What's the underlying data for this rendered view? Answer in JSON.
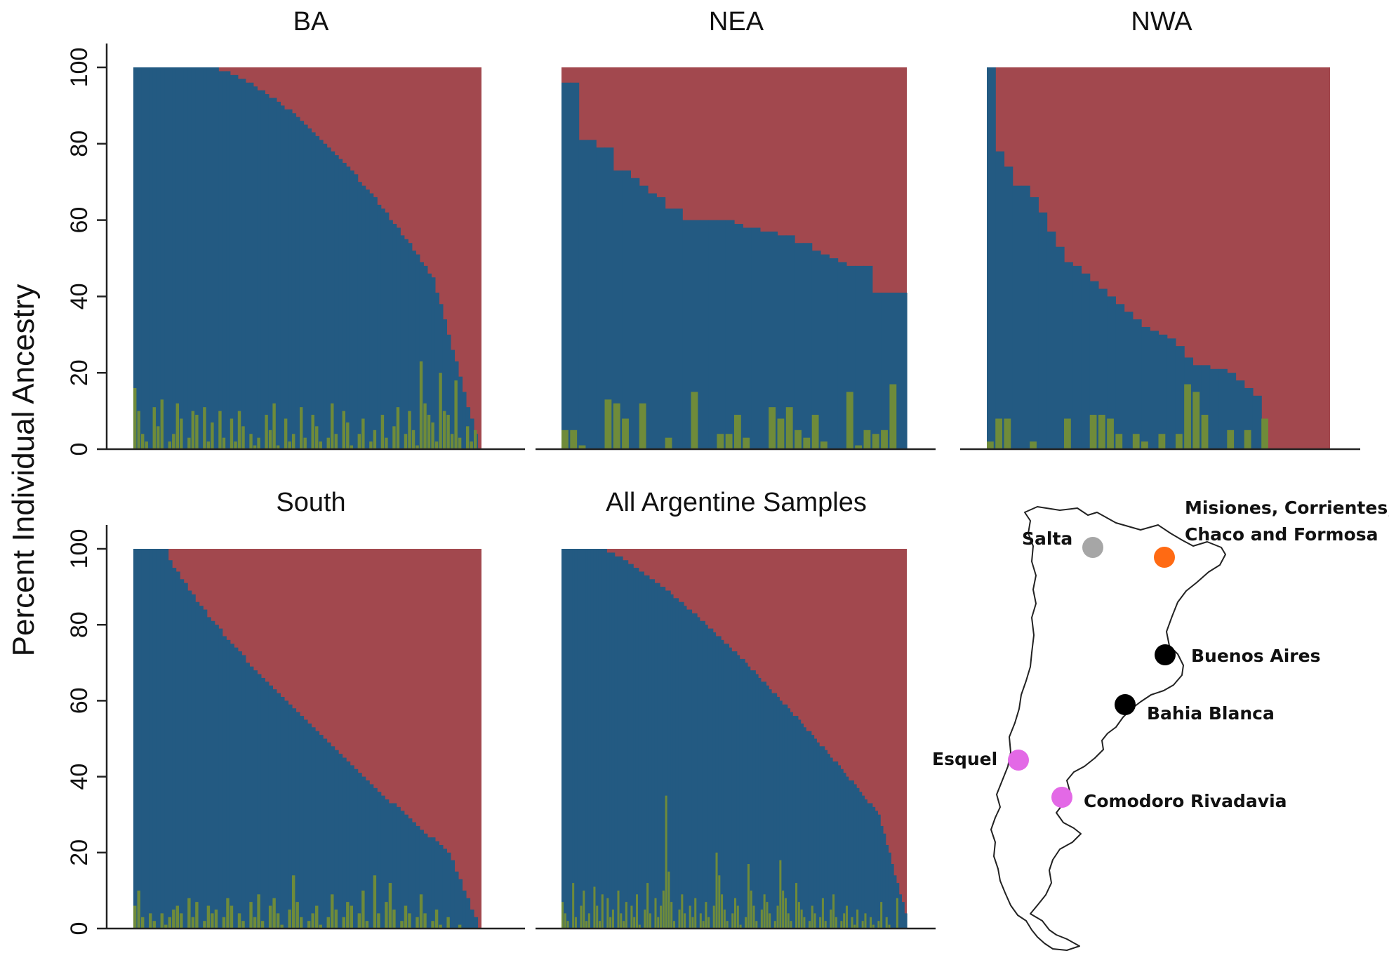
{
  "y_axis_label": "Percent Individual Ancestry",
  "colors": {
    "blue": "#235a82",
    "red": "#a2484e",
    "green": "#6f8b3a"
  },
  "chart_data": [
    {
      "type": "bar",
      "stacked": true,
      "title": "BA",
      "ylabel": "Percent Individual Ancestry",
      "ylim": [
        0,
        100
      ],
      "yticks": [
        "0",
        "20",
        "40",
        "60",
        "80",
        "100"
      ],
      "shape": {
        "n": 90,
        "first_full": 18,
        "last_value": 0,
        "tail_start": 0.86,
        "drop_exp": 1.6,
        "tail_level": 45
      },
      "green_spikes": [
        16,
        10,
        4,
        2,
        0,
        11,
        6,
        13,
        0,
        2,
        4,
        12,
        8,
        0,
        3,
        10,
        9,
        0,
        11,
        2,
        7,
        0,
        10,
        3,
        0,
        8,
        2,
        10,
        6,
        0,
        4,
        1,
        3,
        0,
        9,
        5,
        12,
        1,
        0,
        8,
        2,
        4,
        0,
        11,
        3,
        0,
        9,
        6,
        2,
        0,
        3,
        12,
        4,
        0,
        10,
        7,
        1,
        0,
        4,
        8,
        0,
        2,
        5,
        0,
        9,
        3,
        0,
        6,
        11,
        0,
        4,
        10,
        5,
        1,
        23,
        12,
        9,
        7,
        2,
        20,
        10,
        9,
        4,
        18,
        3,
        0,
        6,
        2,
        5,
        0
      ],
      "series": [
        {
          "name": "",
          "color": "blue"
        },
        {
          "name": "",
          "color": "red"
        },
        {
          "name": "",
          "color": "green"
        }
      ]
    },
    {
      "type": "bar",
      "stacked": true,
      "title": "NEA",
      "ylim": [
        0,
        100
      ],
      "yticks": [],
      "steps": [
        96,
        96,
        81,
        81,
        79,
        79,
        73,
        73,
        71,
        69,
        67,
        66,
        63,
        63,
        60,
        60,
        60,
        60,
        60,
        60,
        59,
        58,
        58,
        57,
        57,
        56,
        56,
        54,
        54,
        52,
        51,
        50,
        49,
        48,
        48,
        48,
        41,
        41,
        41,
        41
      ],
      "green_spikes": [
        5,
        5,
        1,
        0,
        0,
        13,
        12,
        8,
        0,
        12,
        0,
        0,
        3,
        0,
        0,
        15,
        0,
        0,
        4,
        4,
        9,
        3,
        0,
        0,
        11,
        8,
        11,
        5,
        3,
        9,
        2,
        0,
        0,
        15,
        1,
        5,
        4,
        5,
        17,
        0
      ],
      "series": [
        {
          "name": "",
          "color": "blue"
        },
        {
          "name": "",
          "color": "red"
        },
        {
          "name": "",
          "color": "green"
        }
      ]
    },
    {
      "type": "bar",
      "stacked": true,
      "title": "NWA",
      "ylim": [
        0,
        100
      ],
      "yticks": [],
      "steps": [
        100,
        78,
        74,
        69,
        69,
        66,
        62,
        57,
        53,
        49,
        48,
        46,
        44,
        42,
        40,
        38,
        36,
        34,
        32,
        31,
        30,
        29,
        27,
        24,
        22,
        22,
        21,
        21,
        20,
        18,
        16,
        14,
        0,
        0,
        0,
        0,
        0,
        0,
        0,
        0
      ],
      "green_spikes": [
        2,
        8,
        8,
        0,
        0,
        2,
        0,
        0,
        0,
        8,
        0,
        0,
        9,
        9,
        8,
        4,
        0,
        4,
        2,
        0,
        4,
        0,
        4,
        17,
        15,
        9,
        0,
        0,
        5,
        0,
        5,
        0,
        8,
        0,
        0,
        0,
        0,
        0,
        0,
        0
      ],
      "series": [
        {
          "name": "",
          "color": "blue"
        },
        {
          "name": "",
          "color": "red"
        },
        {
          "name": "",
          "color": "green"
        }
      ]
    },
    {
      "type": "bar",
      "stacked": true,
      "title": "South",
      "ylim": [
        0,
        100
      ],
      "yticks": [
        "0",
        "20",
        "40",
        "60",
        "80",
        "100"
      ],
      "shape": {
        "n": 90,
        "first_full": 8,
        "last_value": 0,
        "tail_start": 0.9,
        "drop_exp": 0.8,
        "tail_level": 20
      },
      "green_spikes": [
        6,
        10,
        3,
        0,
        4,
        2,
        0,
        4,
        1,
        3,
        5,
        6,
        4,
        0,
        8,
        3,
        7,
        0,
        2,
        6,
        4,
        5,
        0,
        3,
        8,
        6,
        0,
        4,
        2,
        0,
        7,
        3,
        9,
        2,
        0,
        6,
        8,
        4,
        1,
        0,
        5,
        14,
        7,
        3,
        0,
        2,
        4,
        6,
        1,
        0,
        3,
        9,
        5,
        0,
        3,
        7,
        6,
        0,
        4,
        10,
        2,
        0,
        14,
        4,
        0,
        7,
        12,
        5,
        0,
        2,
        6,
        4,
        0,
        3,
        9,
        4,
        0,
        2,
        5,
        1,
        0,
        3,
        0,
        0,
        1,
        0,
        0,
        0,
        0,
        0
      ],
      "series": [
        {
          "name": "",
          "color": "blue"
        },
        {
          "name": "",
          "color": "red"
        },
        {
          "name": "",
          "color": "green"
        }
      ]
    },
    {
      "type": "bar",
      "stacked": true,
      "title": "All Argentine Samples",
      "ylim": [
        0,
        100
      ],
      "yticks": [],
      "shape": {
        "n": 130,
        "first_full": 14,
        "last_value": 4,
        "tail_start": 0.92,
        "drop_exp": 1.3,
        "tail_level": 30
      },
      "green_spikes": [
        7,
        4,
        2,
        0,
        12,
        3,
        0,
        6,
        10,
        2,
        4,
        0,
        11,
        6,
        2,
        9,
        0,
        8,
        3,
        5,
        0,
        10,
        4,
        2,
        7,
        0,
        6,
        3,
        9,
        1,
        0,
        5,
        12,
        4,
        0,
        8,
        3,
        6,
        10,
        35,
        15,
        7,
        2,
        0,
        5,
        9,
        4,
        0,
        6,
        3,
        8,
        0,
        4,
        2,
        7,
        3,
        0,
        6,
        20,
        14,
        9,
        5,
        2,
        0,
        4,
        8,
        6,
        1,
        0,
        3,
        17,
        10,
        6,
        2,
        0,
        5,
        9,
        7,
        4,
        0,
        2,
        6,
        18,
        10,
        8,
        4,
        2,
        0,
        12,
        7,
        5,
        3,
        0,
        2,
        6,
        4,
        0,
        3,
        8,
        2,
        0,
        5,
        9,
        3,
        0,
        2,
        4,
        6,
        0,
        3,
        1,
        5,
        0,
        2,
        4,
        0,
        3,
        1,
        0,
        2,
        7,
        0,
        3,
        1,
        0,
        0,
        8,
        0,
        0,
        0
      ],
      "series": [
        {
          "name": "",
          "color": "blue"
        },
        {
          "name": "",
          "color": "red"
        },
        {
          "name": "",
          "color": "green"
        }
      ]
    }
  ],
  "map": {
    "labels": {
      "misiones_line1": "Misiones, Corrientes,",
      "misiones_line2": "Chaco and Formosa",
      "salta": "Salta",
      "buenos_aires": "Buenos Aires",
      "bahia_blanca": "Bahia Blanca",
      "esquel": "Esquel",
      "comodoro": "Comodoro Rivadavia"
    },
    "dot_colors": {
      "salta": "#a6a6a6",
      "misiones": "#ff6a13",
      "buenos_aires": "#000000",
      "bahia_blanca": "#000000",
      "esquel": "#e369e6",
      "comodoro": "#e369e6"
    }
  }
}
